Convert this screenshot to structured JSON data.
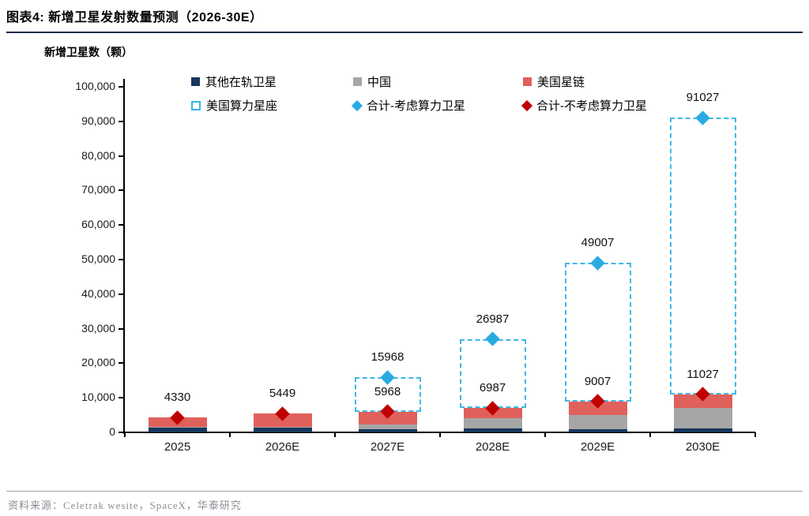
{
  "header": {
    "title": "图表4:  新增卫星发射数量预测（2026-30E）"
  },
  "footer": {
    "source": "资料来源：Celetrak wesite，SpaceX，华泰研究"
  },
  "colors": {
    "other_in_orbit": "#17375e",
    "china": "#a6a6a6",
    "us_starlink": "#e0605c",
    "compute_box": "#3fb7e8",
    "total_with_compute": "#29abe2",
    "total_without_compute": "#c00000",
    "axis": "#000000",
    "title_rule": "#1c2b4a"
  },
  "legend": {
    "items": [
      {
        "key": "other-in-orbit",
        "label": "其他在轨卫星",
        "marker": "square",
        "color": "#17375e",
        "col": 0,
        "row": 0
      },
      {
        "key": "china",
        "label": "中国",
        "marker": "square",
        "color": "#a6a6a6",
        "col": 1,
        "row": 0
      },
      {
        "key": "us-starlink",
        "label": "美国星链",
        "marker": "square",
        "color": "#e0605c",
        "col": 2,
        "row": 0
      },
      {
        "key": "us-compute-constellation",
        "label": "美国算力星座",
        "marker": "dashed-square",
        "color": "#35b5e8",
        "col": 0,
        "row": 1
      },
      {
        "key": "total-with-compute",
        "label": "合计-考虑算力卫星",
        "marker": "diamond",
        "color": "#29abe2",
        "col": 1,
        "row": 1
      },
      {
        "key": "total-without-compute",
        "label": "合计-不考虑算力卫星",
        "marker": "diamond",
        "color": "#c00000",
        "col": 2,
        "row": 1
      }
    ]
  },
  "chart_data": {
    "type": "bar",
    "subtype": "stacked-with-markers",
    "title": "新增卫星发射数量预测（2026-30E）",
    "ylabel": "新增卫星数（颗）",
    "xlabel": "",
    "categories": [
      "2025",
      "2026E",
      "2027E",
      "2028E",
      "2029E",
      "2030E"
    ],
    "ylim": [
      0,
      100000
    ],
    "ytick_step": 10000,
    "ytick_labels": [
      "0",
      "10,000",
      "20,000",
      "30,000",
      "40,000",
      "50,000",
      "60,000",
      "70,000",
      "80,000",
      "90,000",
      "100,000"
    ],
    "grid": false,
    "legend_position": "top-inside",
    "segments_estimated": true,
    "stack_series": [
      {
        "name": "其他在轨卫星",
        "color": "#17375e",
        "values": [
          1300,
          1400,
          1000,
          1100,
          800,
          1100
        ]
      },
      {
        "name": "中国",
        "color": "#a6a6a6",
        "values": [
          200,
          300,
          1200,
          3000,
          4200,
          5900
        ]
      },
      {
        "name": "美国星链",
        "color": "#e0605c",
        "values": [
          2830,
          3749,
          3768,
          2887,
          4007,
          4027
        ]
      }
    ],
    "dashed_series": {
      "name": "美国算力星座",
      "color": "#3fb7e8",
      "values": [
        null,
        null,
        10000,
        20000,
        40000,
        80000
      ]
    },
    "marker_series": [
      {
        "name": "合计-考虑算力卫星",
        "color": "#29abe2",
        "values": [
          null,
          null,
          15968,
          26987,
          49007,
          91027
        ]
      },
      {
        "name": "合计-不考虑算力卫星",
        "color": "#c00000",
        "values": [
          4330,
          5449,
          5968,
          6987,
          9007,
          11027
        ]
      }
    ],
    "labels_with_compute": [
      null,
      null,
      "15968",
      "26987",
      "49007",
      "91027"
    ],
    "labels_without_compute": [
      "4330",
      "5449",
      "5968",
      "6987",
      "9007",
      "11027"
    ]
  }
}
